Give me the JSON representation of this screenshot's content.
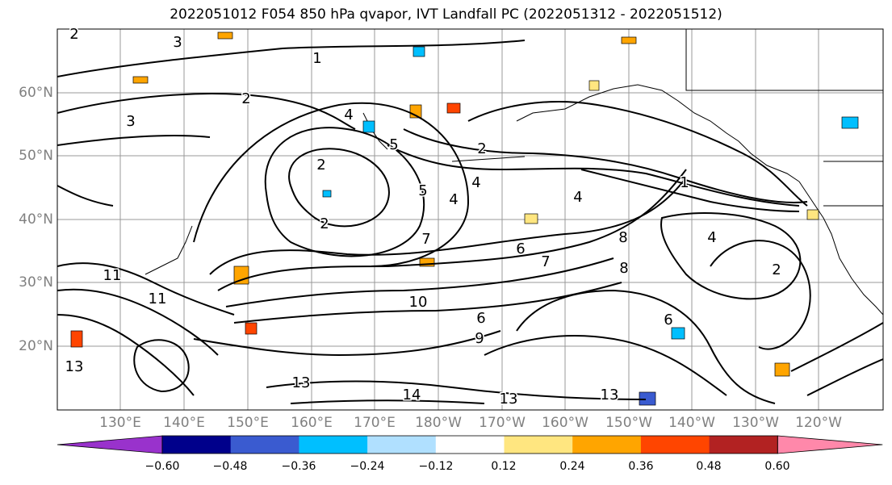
{
  "title": "2022051012 F054 850 hPa qvapor, IVT Landfall PC (2022051312 - 2022051512)",
  "lat_labels": [
    "60°N",
    "50°N",
    "40°N",
    "30°N",
    "20°N"
  ],
  "lon_labels": [
    "130°E",
    "140°E",
    "150°E",
    "160°E",
    "170°E",
    "180°W",
    "170°W",
    "160°W",
    "150°W",
    "140°W",
    "130°W",
    "120°W"
  ],
  "colorbar": {
    "ticks": [
      "−0.60",
      "−0.48",
      "−0.36",
      "−0.24",
      "−0.12",
      "0.12",
      "0.24",
      "0.36",
      "0.48",
      "0.60"
    ],
    "colors": [
      "#9932cc",
      "#00008b",
      "#3a5bd0",
      "#00bfff",
      "#b0e0ff",
      "#ffffff",
      "#ffe680",
      "#ffa500",
      "#ff4500",
      "#b22222",
      "#ff88aa"
    ]
  },
  "contour_labels": [
    "2",
    "3",
    "1",
    "2",
    "3",
    "2",
    "2",
    "4",
    "5",
    "4",
    "5",
    "2",
    "4",
    "4",
    "6",
    "7",
    "7",
    "8",
    "4",
    "1",
    "2",
    "8",
    "10",
    "11",
    "11",
    "6",
    "6",
    "9",
    "13",
    "13",
    "13",
    "13",
    "14"
  ]
}
